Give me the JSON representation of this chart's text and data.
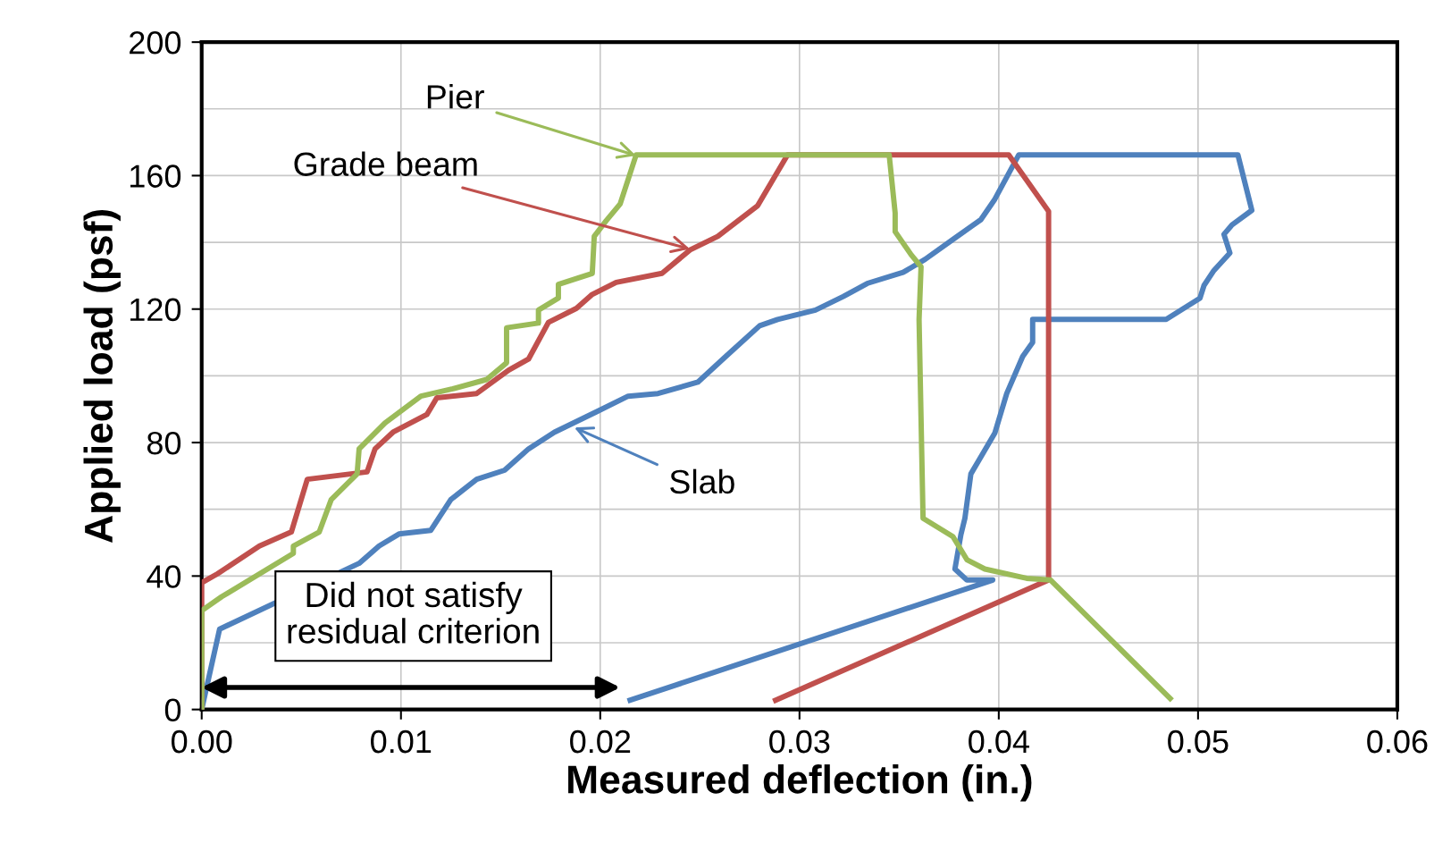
{
  "chart_data": {
    "type": "line",
    "xlabel": "Measured deflection (in.)",
    "ylabel": "Applied load (psf)",
    "xlim": [
      0,
      0.06
    ],
    "xticks": [
      {
        "value": 0,
        "label": "0.00"
      },
      {
        "value": 0.01,
        "label": "0.01"
      },
      {
        "value": 0.02,
        "label": "0.02"
      },
      {
        "value": 0.03,
        "label": "0.03"
      },
      {
        "value": 0.04,
        "label": "0.04"
      },
      {
        "value": 0.05,
        "label": "0.05"
      },
      {
        "value": 0.06,
        "label": "0.06"
      }
    ],
    "ylim": [
      0,
      200
    ],
    "yticks": [
      0,
      40,
      80,
      120,
      160,
      200
    ],
    "grid": true,
    "marker": "none",
    "line_style": "solid",
    "series": [
      {
        "color": "#9bbb59",
        "x": [
          0,
          0,
          0.001,
          0.0046,
          0.0046,
          0.0059,
          0.0065,
          0.0078,
          0.0079,
          0.0092,
          0.011,
          0.0126,
          0.0143,
          0.0153,
          0.0153,
          0.0169,
          0.0169,
          0.0179,
          0.0179,
          0.0196,
          0.0197,
          0.0203,
          0.021,
          0.0218,
          0.0345,
          0.0348,
          0.0348,
          0.0356,
          0.0361,
          0.036,
          0.0362,
          0.0377,
          0.0384,
          0.0393,
          0.0414,
          0.0426,
          0.0486
        ],
        "values": [
          0,
          29.6,
          33.8,
          46.8,
          49,
          53.2,
          62.9,
          70.6,
          78.1,
          85.9,
          93.9,
          96.1,
          98.9,
          103.9,
          114.4,
          115.8,
          119.7,
          123.3,
          127.4,
          130.7,
          141.8,
          146.5,
          151.5,
          166.2,
          166.2,
          148.8,
          143.2,
          136.3,
          132.7,
          116.9,
          57.3,
          51.8,
          44.9,
          42.1,
          39.3,
          38.8,
          3.3
        ]
      },
      {
        "color": "#c0504d",
        "x": [
          0,
          0,
          0.0008,
          0.0029,
          0.0045,
          0.0053,
          0.0083,
          0.0087,
          0.0096,
          0.0113,
          0.0118,
          0.0138,
          0.0154,
          0.0164,
          0.0174,
          0.0188,
          0.0196,
          0.0208,
          0.0231,
          0.0245,
          0.0259,
          0.0279,
          0.0294,
          0.0405,
          0.0425,
          0.0425,
          0.0288
        ],
        "values": [
          0,
          38,
          40.7,
          49,
          53.2,
          69,
          71.2,
          78.1,
          83.1,
          88.4,
          93.4,
          94.7,
          101.7,
          105,
          116,
          120.2,
          124.4,
          128,
          130.7,
          137.7,
          141.8,
          151,
          166.2,
          166.2,
          149.3,
          38.8,
          2.8
        ]
      },
      {
        "color": "#4f81bd",
        "x": [
          0,
          0.0009,
          0.0079,
          0.0089,
          0.0099,
          0.0115,
          0.0125,
          0.0138,
          0.0152,
          0.0164,
          0.0177,
          0.0198,
          0.0214,
          0.0229,
          0.0249,
          0.0263,
          0.028,
          0.0289,
          0.0308,
          0.0322,
          0.0334,
          0.0352,
          0.0363,
          0.0378,
          0.0391,
          0.0398,
          0.041,
          0.052,
          0.0527,
          0.0517,
          0.0513,
          0.0516,
          0.0508,
          0.0503,
          0.0501,
          0.0484,
          0.0417,
          0.0417,
          0.0412,
          0.0404,
          0.0398,
          0.0386,
          0.0383,
          0.0381,
          0.0378,
          0.0384,
          0.0397,
          0.0215
        ],
        "values": [
          0,
          24.1,
          43.8,
          49,
          52.6,
          53.7,
          62.9,
          69,
          71.7,
          78.1,
          83.1,
          89.2,
          93.9,
          94.7,
          98.1,
          105.8,
          115,
          116.9,
          119.7,
          123.8,
          127.7,
          131,
          134.9,
          141.3,
          146.8,
          152.9,
          166.2,
          166.2,
          149.6,
          145.2,
          142.4,
          136.8,
          131.6,
          127.1,
          123.3,
          116.9,
          116.9,
          110,
          105.8,
          94.7,
          82.8,
          70.6,
          57.3,
          52.4,
          42.1,
          38.8,
          38.8,
          2.8
        ]
      }
    ],
    "annotations": [
      {
        "text": "Pier",
        "x": 0.0218,
        "y": 166
      },
      {
        "text": "Grade beam",
        "x": 0.0245,
        "y": 138
      },
      {
        "text": "Slab",
        "x": 0.0187,
        "y": 84.5
      },
      "Did not satisfy\nresidual criterion"
    ]
  }
}
